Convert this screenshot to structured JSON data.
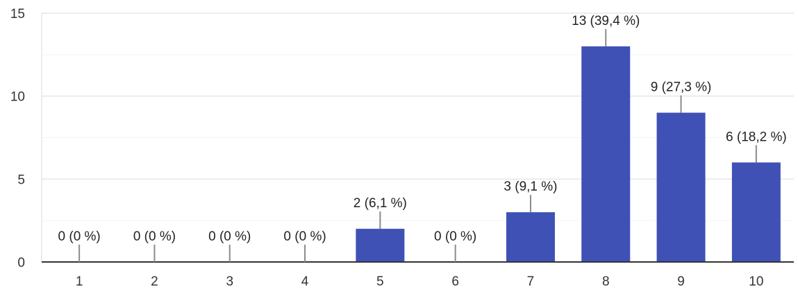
{
  "chart_data": {
    "type": "bar",
    "categories": [
      "1",
      "2",
      "3",
      "4",
      "5",
      "6",
      "7",
      "8",
      "9",
      "10"
    ],
    "values": [
      0,
      0,
      0,
      0,
      2,
      0,
      3,
      13,
      9,
      6
    ],
    "data_labels": [
      "0 (0 %)",
      "0 (0 %)",
      "0 (0 %)",
      "0 (0 %)",
      "2 (6,1 %)",
      "0 (0 %)",
      "3 (9,1 %)",
      "13 (39,4 %)",
      "9 (27,3 %)",
      "6 (18,2 %)"
    ],
    "y_ticks": [
      "0",
      "5",
      "10",
      "15"
    ],
    "ylim": [
      0,
      15
    ],
    "grid": true,
    "bar_color": "#3f51b5"
  }
}
